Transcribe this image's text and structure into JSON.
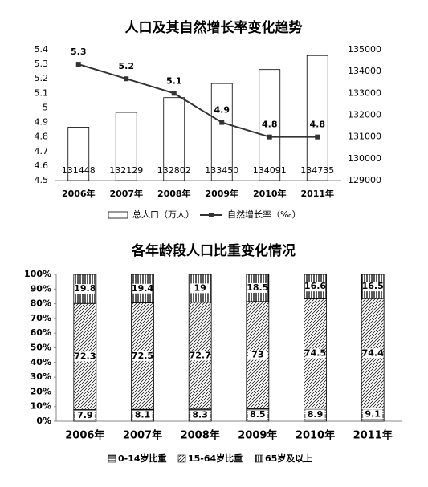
{
  "chart_data": [
    {
      "type": "bar",
      "title": "人口及其自然增长率变化趋势",
      "categories": [
        "2006年",
        "2007年",
        "2008年",
        "2009年",
        "2010年",
        "2011年"
      ],
      "series": [
        {
          "name": "总人口（万人）",
          "type": "bar",
          "axis": "y2",
          "color": "#ffffff",
          "values": [
            131448,
            132129,
            132802,
            133450,
            134091,
            134735
          ]
        },
        {
          "name": "自然增长率（‰）",
          "type": "line",
          "color": "#333333",
          "values": [
            5.3,
            5.2,
            5.1,
            4.9,
            4.8,
            4.8
          ]
        }
      ],
      "ylim": [
        4.5,
        5.4
      ],
      "yticks": [
        4.5,
        4.6,
        4.7,
        4.8,
        4.9,
        5,
        5.1,
        5.2,
        5.3,
        5.4
      ],
      "y2lim": [
        129000,
        135000
      ],
      "y2ticks": [
        129000,
        130000,
        131000,
        132000,
        133000,
        134000,
        135000
      ],
      "grid": false,
      "legend": "bottom"
    },
    {
      "type": "stacked-bar",
      "title": "各年龄段人口比重变化情况",
      "categories": [
        "2006年",
        "2007年",
        "2008年",
        "2009年",
        "2010年",
        "2011年"
      ],
      "series": [
        {
          "name": "0-14岁比重",
          "color": "#000000",
          "pattern": "horizontal",
          "values": [
            7.9,
            8.1,
            8.3,
            8.5,
            8.9,
            9.1
          ]
        },
        {
          "name": "15-64岁比重",
          "color": "#000000",
          "pattern": "diagonal",
          "values": [
            72.3,
            72.5,
            72.7,
            73,
            74.5,
            74.4
          ]
        },
        {
          "name": "65岁及以上",
          "color": "#000000",
          "pattern": "vertical",
          "values": [
            19.8,
            19.4,
            19,
            18.5,
            16.6,
            16.5
          ]
        }
      ],
      "ylim": [
        0,
        100
      ],
      "yticks": [
        {
          "value": 0,
          "label": "0%"
        },
        {
          "value": 10,
          "label": "10%"
        },
        {
          "value": 20,
          "label": "20%"
        },
        {
          "value": 30,
          "label": "30%"
        },
        {
          "value": 40,
          "label": "40%"
        },
        {
          "value": 50,
          "label": "50%"
        },
        {
          "value": 60,
          "label": "60%"
        },
        {
          "value": 70,
          "label": "70%"
        },
        {
          "value": 80,
          "label": "80%"
        },
        {
          "value": 90,
          "label": "90%"
        },
        {
          "value": 100,
          "label": "100%"
        }
      ],
      "grid": false,
      "legend": "bottom"
    }
  ]
}
